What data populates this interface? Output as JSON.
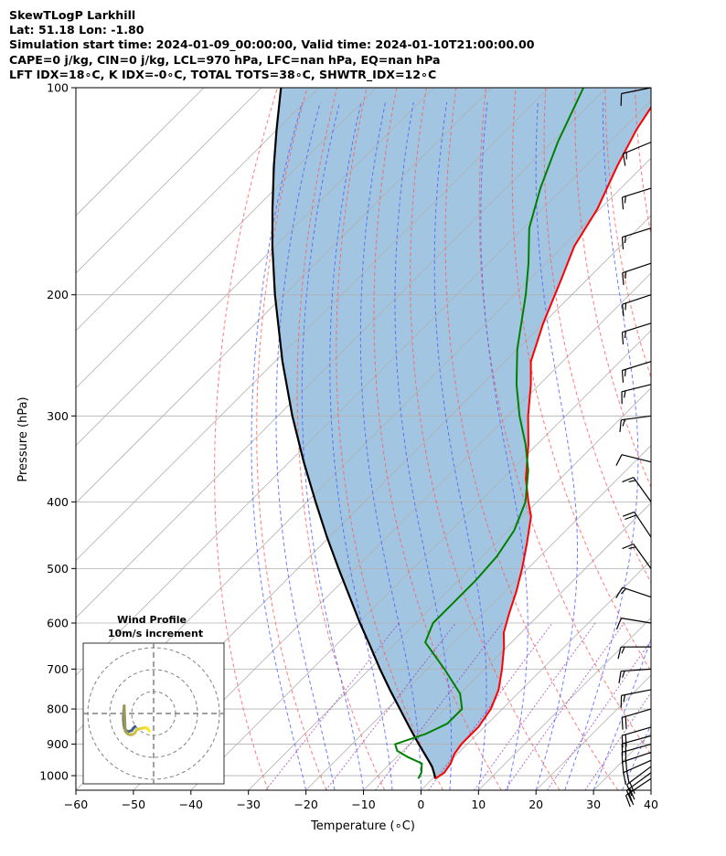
{
  "header": {
    "line1": "SkewTLogP Larkhill",
    "line2": "Lat: 51.18   Lon: -1.80",
    "line3": "Simulation start time: 2024-01-09_00:00:00, Valid time: 2024-01-10T21:00:00.00",
    "line4": "CAPE=0 j/kg, CIN=0 j/kg, LCL=970 hPa, LFC=nan hPa, EQ=nan hPa",
    "line5": "LFT IDX=18∘C, K IDX=-0∘C, TOTAL TOTS=38∘C, SHWTR_IDX=12∘C"
  },
  "chart_data": {
    "type": "line",
    "subtype": "skew-t log-p",
    "xlabel": "Temperature (∘C)",
    "ylabel": "Pressure (hPa)",
    "xlim": [
      -60,
      40
    ],
    "ylim": [
      1050,
      100
    ],
    "y_scale": "log",
    "grid": true,
    "x_ticks": [
      "−60",
      "−50",
      "−40",
      "−30",
      "−20",
      "−10",
      "0",
      "10",
      "20",
      "30",
      "40"
    ],
    "y_ticks": [
      "100",
      "200",
      "300",
      "400",
      "500",
      "600",
      "700",
      "800",
      "900",
      "1000"
    ],
    "series": [
      {
        "role": "temperature",
        "color": "#ff0000",
        "p": [
          1010,
          990,
          960,
          930,
          900,
          850,
          800,
          750,
          700,
          650,
          620,
          580,
          540,
          500,
          460,
          420,
          400,
          370,
          330,
          300,
          270,
          250,
          220,
          190,
          170,
          150,
          130,
          115,
          100
        ],
        "t": [
          0.5,
          1.0,
          0.5,
          -0.5,
          -1.0,
          -1.0,
          -2.0,
          -4.0,
          -7.0,
          -10.5,
          -13.0,
          -15.5,
          -18.0,
          -21.0,
          -24.5,
          -28.5,
          -31.5,
          -36.0,
          -41.5,
          -46.5,
          -51.5,
          -55.5,
          -60.0,
          -64.5,
          -68.0,
          -70.5,
          -74.5,
          -77.5,
          -80.0
        ]
      },
      {
        "role": "dewpoint",
        "color": "#008000",
        "p": [
          1010,
          990,
          960,
          940,
          920,
          900,
          870,
          840,
          800,
          760,
          700,
          640,
          600,
          560,
          520,
          480,
          440,
          400,
          360,
          330,
          300,
          270,
          240,
          200,
          180,
          160,
          140,
          120,
          100
        ],
        "t": [
          -2.5,
          -3.0,
          -4.5,
          -8.0,
          -11.0,
          -12.5,
          -9.0,
          -7.0,
          -7.0,
          -10.0,
          -17.0,
          -25.0,
          -27.0,
          -27.0,
          -27.0,
          -27.5,
          -29.0,
          -32.0,
          -37.0,
          -42.0,
          -48.0,
          -54.0,
          -60.0,
          -68.0,
          -73.0,
          -79.0,
          -84.0,
          -89.0,
          -94.0
        ]
      },
      {
        "role": "parcel",
        "color": "#000000",
        "p": [
          1010,
          990,
          970,
          950,
          900,
          850,
          800,
          750,
          700,
          650,
          600,
          550,
          500,
          450,
          400,
          350,
          300,
          250,
          200,
          170,
          150,
          130,
          115,
          100
        ],
        "t": [
          0.5,
          -0.8,
          -2.2,
          -3.9,
          -8.4,
          -13.0,
          -17.8,
          -22.9,
          -28.2,
          -33.7,
          -39.7,
          -46.0,
          -52.9,
          -60.4,
          -68.5,
          -77.5,
          -87.5,
          -98.7,
          -111.6,
          -120.5,
          -127.0,
          -134.2,
          -140.1,
          -146.6
        ]
      }
    ],
    "wind_barbs": {
      "p": [
        1010,
        990,
        970,
        950,
        925,
        900,
        875,
        850,
        800,
        750,
        700,
        650,
        600,
        550,
        500,
        450,
        400,
        350,
        300,
        270,
        250,
        220,
        200,
        180,
        160,
        140,
        120,
        100
      ],
      "u": [
        15,
        15,
        16,
        18,
        18,
        18,
        18,
        17,
        17,
        15,
        14,
        13,
        12,
        12,
        10,
        10,
        10,
        12,
        15,
        16,
        16,
        16,
        15,
        15,
        16,
        16,
        12,
        10
      ],
      "v": [
        10,
        11,
        12,
        8,
        6,
        5,
        5,
        5,
        5,
        3,
        1,
        0,
        -2,
        -4,
        -14,
        -15,
        -14,
        -3,
        2,
        4,
        5,
        5,
        5,
        5,
        5,
        5,
        5,
        2
      ]
    },
    "inset": {
      "title_line1": "Wind Profile",
      "title_line2": "10m/s increment",
      "u": [
        -8.5,
        -9.2,
        -10.0,
        -11.8,
        -12.5,
        -13.3,
        -13.6,
        -13.8,
        -13.8,
        -13.6,
        -13.4,
        -12.9,
        -12.2,
        -11.5,
        -10.5,
        -9.5,
        -8.5,
        -7.8,
        -6.2,
        -5.0,
        -4.0,
        -2.6,
        -2.0
      ],
      "v": [
        -6.0,
        -6.7,
        -7.8,
        -8.3,
        -7.8,
        -6.7,
        -5.0,
        -3.0,
        -1.0,
        1.5,
        3.5,
        -8.0,
        -8.9,
        -9.5,
        -9.7,
        -9.5,
        -8.9,
        -7.5,
        -6.9,
        -6.7,
        -6.4,
        -6.9,
        -8.0
      ],
      "color_start": "#3b528b",
      "color_end": "#fde725"
    }
  }
}
